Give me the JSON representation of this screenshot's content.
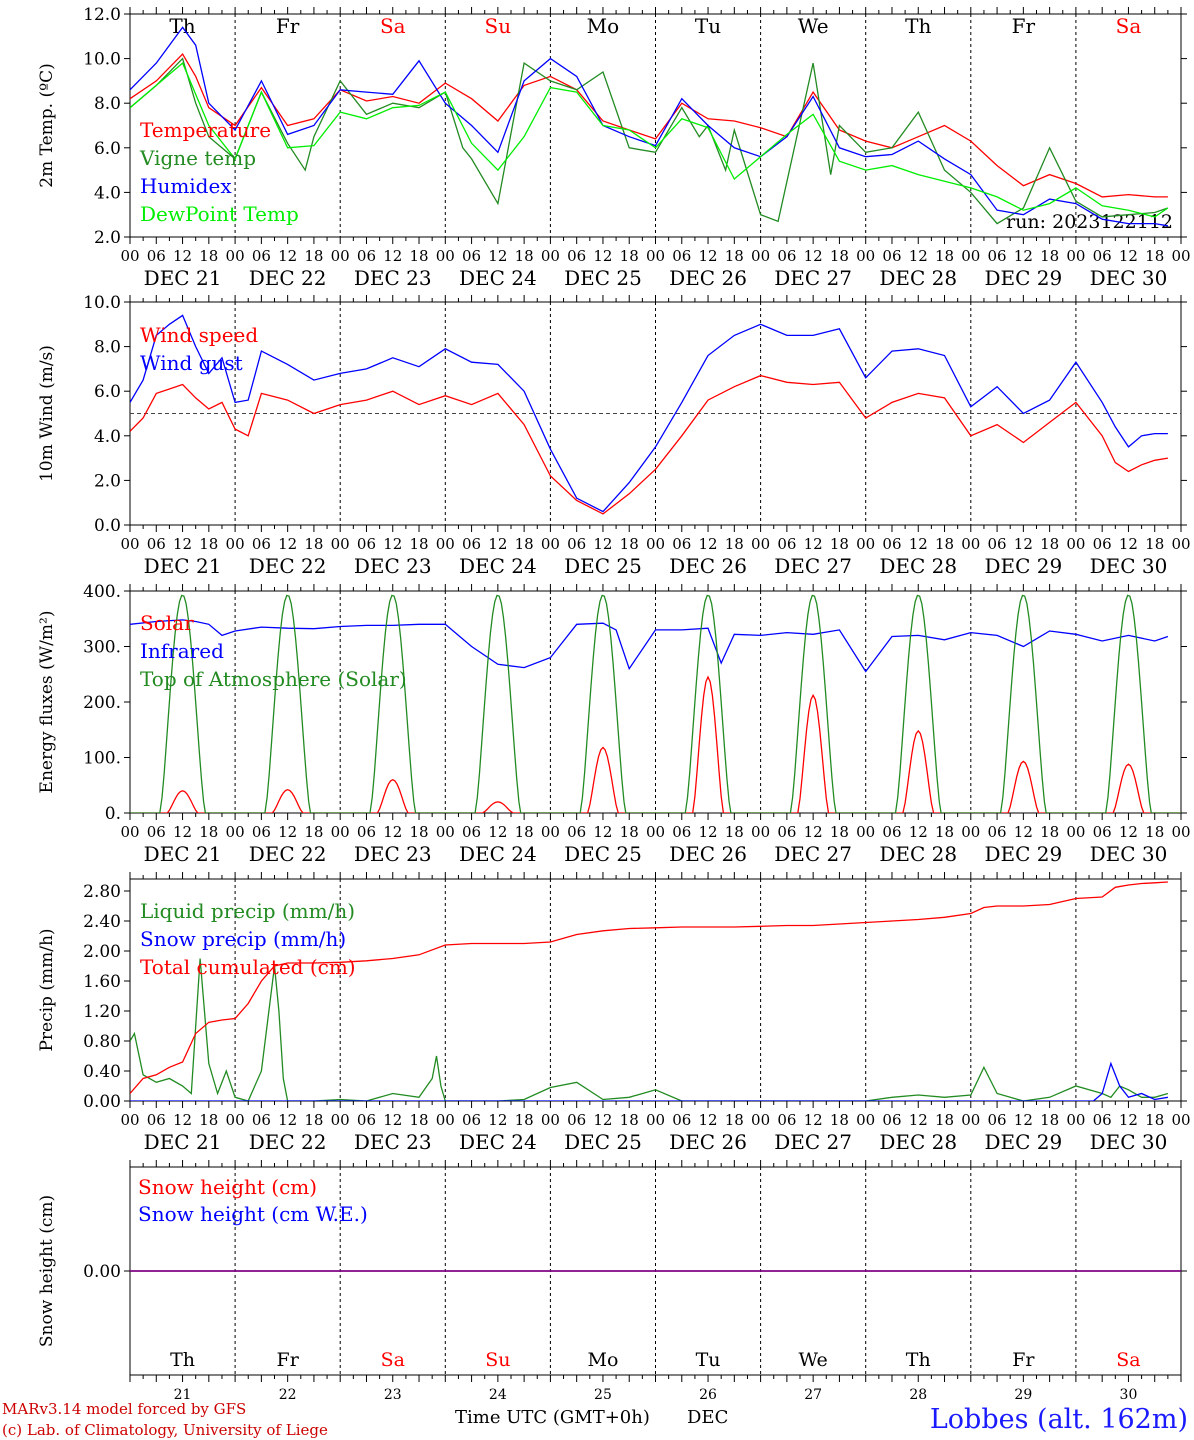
{
  "chart_data": [
    {
      "type": "line",
      "ylabel": "2m Temp. (ºC)",
      "ylim": [
        2.0,
        12.0
      ],
      "yticks": [
        "2.0",
        "4.0",
        "6.0",
        "8.0",
        "10.0",
        "12.0"
      ],
      "run_label": "run: 2023122112",
      "x_unit": "hours since DEC 21 00 UTC",
      "series": [
        {
          "name": "Temperature",
          "color": "#ff0000",
          "x": [
            0,
            6,
            12,
            15,
            18,
            24,
            30,
            36,
            42,
            48,
            54,
            60,
            66,
            72,
            78,
            84,
            90,
            96,
            102,
            108,
            114,
            120,
            126,
            132,
            138,
            144,
            150,
            156,
            162,
            168,
            174,
            180,
            186,
            192,
            198,
            204,
            210,
            216,
            222,
            228,
            234,
            237
          ],
          "y": [
            8.2,
            9.0,
            10.2,
            9.2,
            7.8,
            7.0,
            8.7,
            7.0,
            7.3,
            8.6,
            8.1,
            8.3,
            8.0,
            8.9,
            8.2,
            7.2,
            8.8,
            9.2,
            8.6,
            7.2,
            6.8,
            6.4,
            8.0,
            7.3,
            7.2,
            6.9,
            6.5,
            8.5,
            6.8,
            6.3,
            6.0,
            6.5,
            7.0,
            6.3,
            5.2,
            4.3,
            4.8,
            4.4,
            3.8,
            3.9,
            3.8,
            3.8
          ]
        },
        {
          "name": "Vigne temp",
          "color": "#228b22",
          "x": [
            0,
            6,
            12,
            15,
            18,
            24,
            30,
            36,
            40,
            42,
            48,
            54,
            60,
            66,
            72,
            76,
            78,
            84,
            90,
            96,
            102,
            108,
            114,
            120,
            126,
            130,
            132,
            136,
            138,
            144,
            148,
            156,
            160,
            162,
            168,
            174,
            180,
            186,
            192,
            198,
            204,
            210,
            216,
            222,
            228,
            234,
            237
          ],
          "y": [
            7.8,
            8.8,
            10.0,
            8.0,
            6.5,
            5.5,
            8.5,
            6.2,
            5.0,
            6.5,
            9.0,
            7.5,
            8.0,
            7.8,
            8.5,
            6.0,
            5.5,
            3.5,
            9.8,
            9.0,
            8.6,
            9.4,
            6.0,
            5.8,
            7.8,
            6.5,
            7.0,
            5.0,
            6.8,
            3.0,
            2.7,
            9.8,
            4.8,
            7.0,
            5.8,
            6.0,
            7.6,
            5.0,
            4.0,
            2.6,
            3.3,
            6.0,
            3.6,
            2.9,
            3.0,
            3.1,
            3.3
          ]
        },
        {
          "name": "Humidex",
          "color": "#0000ff",
          "x": [
            0,
            6,
            12,
            15,
            18,
            24,
            30,
            36,
            42,
            48,
            54,
            60,
            66,
            72,
            78,
            84,
            90,
            96,
            102,
            108,
            114,
            120,
            126,
            132,
            138,
            144,
            150,
            156,
            162,
            168,
            174,
            180,
            186,
            192,
            198,
            204,
            210,
            216,
            222,
            228,
            234,
            237
          ],
          "y": [
            8.6,
            9.8,
            11.4,
            10.6,
            8.0,
            6.8,
            9.0,
            6.6,
            7.0,
            8.6,
            8.5,
            8.4,
            9.9,
            8.0,
            7.0,
            5.8,
            9.0,
            10.0,
            9.2,
            7.0,
            6.5,
            6.1,
            8.2,
            7.0,
            6.0,
            5.6,
            6.5,
            8.3,
            6.0,
            5.6,
            5.7,
            6.3,
            5.5,
            4.8,
            3.2,
            3.0,
            3.7,
            3.5,
            2.8,
            2.6,
            2.6,
            2.5
          ]
        },
        {
          "name": "DewPoint Temp",
          "color": "#00ee00",
          "x": [
            0,
            6,
            12,
            18,
            24,
            30,
            36,
            42,
            48,
            54,
            60,
            66,
            72,
            78,
            84,
            90,
            96,
            102,
            108,
            114,
            120,
            126,
            132,
            138,
            144,
            150,
            156,
            162,
            168,
            174,
            180,
            186,
            192,
            198,
            204,
            210,
            216,
            222,
            228,
            234,
            237
          ],
          "y": [
            7.8,
            8.8,
            9.8,
            7.0,
            5.5,
            8.5,
            6.0,
            6.1,
            7.6,
            7.3,
            7.8,
            7.9,
            8.5,
            6.2,
            5.0,
            6.5,
            8.7,
            8.5,
            7.0,
            6.8,
            6.0,
            7.3,
            6.9,
            4.6,
            5.6,
            6.6,
            7.5,
            5.4,
            5.0,
            5.2,
            4.8,
            4.5,
            4.2,
            3.8,
            3.2,
            3.5,
            4.2,
            3.4,
            3.2,
            2.9,
            3.3
          ]
        }
      ]
    },
    {
      "type": "line",
      "ylabel": "10m Wind (m/s)",
      "ylim": [
        0.0,
        10.0
      ],
      "yticks": [
        "0.0",
        "2.0",
        "4.0",
        "6.0",
        "8.0",
        "10.0"
      ],
      "reference_line": 5.0,
      "series": [
        {
          "name": "Wind speed",
          "color": "#ff0000",
          "x": [
            0,
            3,
            6,
            9,
            12,
            15,
            18,
            21,
            24,
            27,
            30,
            36,
            42,
            48,
            54,
            60,
            66,
            72,
            78,
            84,
            90,
            96,
            102,
            108,
            114,
            120,
            126,
            132,
            138,
            144,
            150,
            156,
            162,
            168,
            174,
            180,
            186,
            192,
            198,
            204,
            210,
            216,
            222,
            225,
            228,
            231,
            234,
            237
          ],
          "y": [
            4.2,
            4.8,
            5.9,
            6.1,
            6.3,
            5.7,
            5.2,
            5.5,
            4.3,
            4.0,
            5.9,
            5.6,
            5.0,
            5.4,
            5.6,
            6.0,
            5.4,
            5.8,
            5.4,
            5.9,
            4.5,
            2.2,
            1.1,
            0.5,
            1.4,
            2.5,
            4.0,
            5.6,
            6.2,
            6.7,
            6.4,
            6.3,
            6.4,
            4.8,
            5.5,
            5.9,
            5.7,
            4.0,
            4.5,
            3.7,
            4.6,
            5.5,
            4.0,
            2.8,
            2.4,
            2.7,
            2.9,
            3.0
          ]
        },
        {
          "name": "Wind gust",
          "color": "#0000ff",
          "x": [
            0,
            3,
            6,
            9,
            12,
            15,
            18,
            21,
            24,
            27,
            30,
            36,
            42,
            48,
            54,
            60,
            66,
            72,
            78,
            84,
            90,
            96,
            102,
            108,
            114,
            120,
            126,
            132,
            138,
            144,
            150,
            156,
            162,
            168,
            174,
            180,
            186,
            192,
            198,
            204,
            210,
            216,
            222,
            225,
            228,
            231,
            234,
            237
          ],
          "y": [
            5.5,
            6.5,
            8.5,
            9.0,
            9.4,
            8.0,
            6.8,
            7.5,
            5.5,
            5.6,
            7.8,
            7.2,
            6.5,
            6.8,
            7.0,
            7.5,
            7.1,
            7.9,
            7.3,
            7.2,
            6.0,
            3.4,
            1.2,
            0.6,
            1.9,
            3.5,
            5.5,
            7.6,
            8.5,
            9.0,
            8.5,
            8.5,
            8.8,
            6.6,
            7.8,
            7.9,
            7.6,
            5.3,
            6.2,
            5.0,
            5.6,
            7.3,
            5.5,
            4.4,
            3.5,
            4.0,
            4.1,
            4.1
          ]
        }
      ]
    },
    {
      "type": "line",
      "ylabel": "Energy fluxes (W/m²)",
      "ylim": [
        0,
        400
      ],
      "yticks": [
        "0.",
        "100.",
        "200.",
        "300.",
        "400."
      ],
      "series": [
        {
          "name": "Solar",
          "color": "#ff0000",
          "daily_peaks": [
            40,
            42,
            60,
            20,
            118,
            245,
            212,
            148,
            93,
            88
          ]
        },
        {
          "name": "Infrared",
          "color": "#0000ff",
          "x": [
            0,
            6,
            12,
            15,
            18,
            21,
            24,
            30,
            36,
            42,
            48,
            54,
            60,
            66,
            72,
            78,
            84,
            90,
            96,
            102,
            108,
            111,
            114,
            120,
            126,
            132,
            135,
            138,
            144,
            150,
            156,
            162,
            168,
            174,
            180,
            186,
            192,
            198,
            204,
            210,
            216,
            222,
            228,
            234,
            237
          ],
          "y": [
            340,
            345,
            348,
            345,
            340,
            320,
            328,
            335,
            333,
            332,
            336,
            338,
            338,
            340,
            340,
            300,
            268,
            262,
            280,
            340,
            342,
            330,
            260,
            330,
            330,
            333,
            270,
            322,
            320,
            325,
            322,
            330,
            255,
            318,
            320,
            312,
            325,
            320,
            300,
            328,
            322,
            310,
            320,
            310,
            318
          ]
        },
        {
          "name": "Top of Atmosphere (Solar)",
          "color": "#228b22",
          "daily_peaks": [
            393,
            393,
            393,
            393,
            393,
            393,
            393,
            393,
            393,
            393
          ]
        }
      ]
    },
    {
      "type": "line",
      "ylabel": "Precip (mm/h)",
      "ylim": [
        0.0,
        2.96
      ],
      "yticks": [
        "0.00",
        "0.40",
        "0.80",
        "1.20",
        "1.60",
        "2.00",
        "2.40",
        "2.80"
      ],
      "series": [
        {
          "name": "Liquid precip (mm/h)",
          "color": "#228b22",
          "x": [
            0,
            1,
            3,
            6,
            9,
            12,
            14,
            16,
            18,
            20,
            22,
            24,
            27,
            30,
            33,
            34,
            35,
            36,
            42,
            48,
            54,
            60,
            66,
            69,
            70,
            71,
            72,
            78,
            84,
            90,
            96,
            102,
            108,
            114,
            120,
            126,
            132,
            138,
            144,
            150,
            156,
            162,
            168,
            174,
            180,
            186,
            192,
            195,
            198,
            204,
            210,
            216,
            222,
            224,
            226,
            228,
            231,
            234,
            237
          ],
          "y": [
            0.8,
            0.9,
            0.35,
            0.25,
            0.3,
            0.2,
            0.1,
            1.9,
            0.5,
            0.1,
            0.4,
            0.05,
            0.0,
            0.4,
            1.8,
            1.2,
            0.3,
            0.0,
            0.0,
            0.02,
            0.0,
            0.1,
            0.05,
            0.3,
            0.6,
            0.2,
            0.0,
            0.0,
            0.0,
            0.02,
            0.18,
            0.25,
            0.02,
            0.05,
            0.15,
            0.0,
            0.0,
            0.0,
            0.0,
            0.0,
            0.0,
            0.0,
            0.0,
            0.05,
            0.08,
            0.05,
            0.08,
            0.45,
            0.1,
            0.0,
            0.05,
            0.2,
            0.1,
            0.05,
            0.2,
            0.15,
            0.05,
            0.05,
            0.1
          ]
        },
        {
          "name": "Snow precip (mm/h)",
          "color": "#0000ff",
          "x": [
            0,
            220,
            222,
            224,
            226,
            228,
            231,
            234,
            237
          ],
          "y": [
            0.0,
            0.0,
            0.1,
            0.5,
            0.2,
            0.05,
            0.1,
            0.02,
            0.05
          ]
        },
        {
          "name": "Total cumulated (cm)",
          "color": "#ff0000",
          "x": [
            0,
            3,
            6,
            9,
            12,
            15,
            18,
            21,
            24,
            27,
            30,
            33,
            36,
            42,
            48,
            54,
            60,
            66,
            72,
            78,
            84,
            90,
            96,
            102,
            108,
            114,
            120,
            126,
            132,
            138,
            144,
            150,
            156,
            162,
            168,
            174,
            180,
            186,
            192,
            195,
            198,
            204,
            210,
            216,
            222,
            225,
            228,
            231,
            234,
            237
          ],
          "y": [
            0.1,
            0.3,
            0.35,
            0.45,
            0.52,
            0.9,
            1.05,
            1.08,
            1.1,
            1.3,
            1.6,
            1.8,
            1.84,
            1.84,
            1.85,
            1.87,
            1.9,
            1.95,
            2.08,
            2.1,
            2.1,
            2.1,
            2.12,
            2.22,
            2.27,
            2.3,
            2.31,
            2.32,
            2.32,
            2.32,
            2.33,
            2.34,
            2.34,
            2.36,
            2.38,
            2.4,
            2.42,
            2.45,
            2.5,
            2.58,
            2.6,
            2.6,
            2.62,
            2.7,
            2.72,
            2.85,
            2.88,
            2.9,
            2.91,
            2.92
          ]
        }
      ]
    },
    {
      "type": "line",
      "ylabel": "Snow height (cm)",
      "ylim": [
        -1.0,
        1.0
      ],
      "yticks": [
        "0.00"
      ],
      "series": [
        {
          "name": "Snow height (cm)",
          "color": "#ff0000",
          "x": [
            0,
            240
          ],
          "y": [
            0.0,
            0.0
          ]
        },
        {
          "name": "Snow height (cm W.E.)",
          "color": "#0000ff",
          "x": [
            0,
            240
          ],
          "y": [
            0.0,
            0.0
          ]
        }
      ]
    }
  ],
  "axis": {
    "hour_ticks": [
      "00",
      "06",
      "12",
      "18"
    ],
    "final_tick": "00",
    "dates": [
      "DEC 21",
      "DEC 22",
      "DEC 23",
      "DEC 24",
      "DEC 25",
      "DEC 26",
      "DEC 27",
      "DEC 28",
      "DEC 29",
      "DEC 30"
    ],
    "day_numbers": [
      "21",
      "22",
      "23",
      "24",
      "25",
      "26",
      "27",
      "28",
      "29",
      "30"
    ],
    "weekdays": [
      "Th",
      "Fr",
      "Sa",
      "Su",
      "Mo",
      "Tu",
      "We",
      "Th",
      "Fr",
      "Sa"
    ],
    "weekend_flags": [
      false,
      false,
      true,
      true,
      false,
      false,
      false,
      false,
      false,
      true
    ],
    "weekday_color": "#000000",
    "weekend_color": "#ff0000",
    "xlabel": "Time UTC (GMT+0h)",
    "month_label": "DEC"
  },
  "footer": {
    "model_line": "MARv3.14 model forced by GFS",
    "copyright_line": "(c) Lab. of Climatology, University of Liege",
    "station": "Lobbes (alt. 162m)"
  },
  "colors": {
    "station": "#1a1aff",
    "footer_text": "#cc0000",
    "neutral": "#000000"
  }
}
